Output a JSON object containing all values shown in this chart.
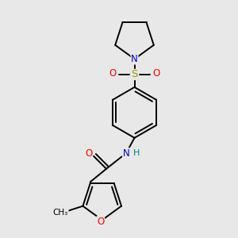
{
  "background_color": "#e8e8e8",
  "bond_color": "#000000",
  "atom_colors": {
    "N": "#0000cc",
    "O": "#ff0000",
    "S": "#999900",
    "H": "#008080",
    "C": "#000000"
  },
  "fig_bg": "#e8e8e8",
  "xlim": [
    0,
    10
  ],
  "ylim": [
    0,
    10
  ]
}
